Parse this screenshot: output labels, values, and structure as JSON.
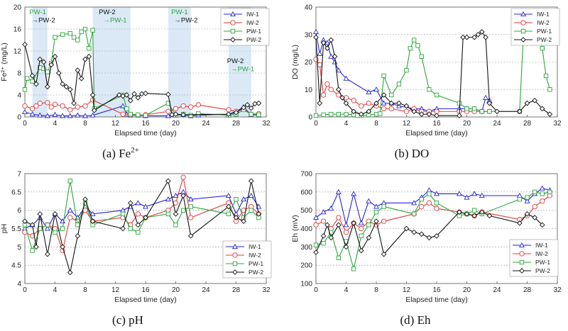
{
  "colors": {
    "IW-1": "#2323d8",
    "IW-2": "#e03a3a",
    "PW-1": "#2aa63a",
    "PW-2": "#111111",
    "shade": "#dbe9f6"
  },
  "chart_data": [
    {
      "type": "line",
      "id": "a",
      "caption": "(a) Fe",
      "caption_sup": "2+",
      "xlabel": "Elapsed time (day)",
      "ylabel": "Fe²⁺ (mg/L)",
      "xlim": [
        0,
        32
      ],
      "ylim": [
        0,
        20
      ],
      "xticks": [
        0,
        4,
        8,
        12,
        16,
        20,
        24,
        28,
        32
      ],
      "yticks": [
        0,
        4,
        8,
        12,
        16,
        20
      ],
      "shaded": [
        [
          1,
          3
        ],
        [
          9,
          14
        ],
        [
          19,
          22
        ],
        [
          27,
          30
        ]
      ],
      "annotations": [
        {
          "text": "PW-1",
          "x": 0.6,
          "y": 18.7,
          "color": "#2aa63a"
        },
        {
          "text": "→PW-2",
          "x": 0.9,
          "y": 17.2,
          "color": "#111111"
        },
        {
          "text": "PW-2",
          "x": 9.8,
          "y": 18.7,
          "color": "#111111"
        },
        {
          "text": "→PW-1",
          "x": 10.4,
          "y": 17.2,
          "color": "#2aa63a"
        },
        {
          "text": "PW-1",
          "x": 19.4,
          "y": 18.7,
          "color": "#2aa63a"
        },
        {
          "text": "→PW-2",
          "x": 19.8,
          "y": 17.2,
          "color": "#111111"
        },
        {
          "text": "PW-2",
          "x": 26.8,
          "y": 9.8,
          "color": "#111111"
        },
        {
          "text": "→PW-1",
          "x": 27.3,
          "y": 8.3,
          "color": "#2aa63a"
        }
      ],
      "legend_position": "top-right",
      "series": [
        {
          "name": "IW-1",
          "marker": "triangle",
          "x": [
            0,
            1,
            2,
            3,
            4,
            5,
            6,
            7,
            8,
            9,
            13,
            13.5,
            14,
            15,
            16,
            19,
            20,
            21,
            22,
            23,
            27,
            28,
            29,
            30,
            31
          ],
          "y": [
            0.9,
            0.5,
            0.3,
            0.2,
            0.4,
            0.2,
            0.2,
            0.3,
            0.2,
            0.3,
            2.0,
            0.5,
            0.3,
            0.3,
            0.2,
            0.2,
            0.3,
            0.4,
            0.2,
            0.3,
            0.5,
            1.0,
            1.8,
            0.4,
            0.3
          ]
        },
        {
          "name": "IW-2",
          "marker": "circle",
          "x": [
            0,
            1,
            1.5,
            2,
            3,
            3.5,
            4,
            5,
            6,
            7,
            8,
            9,
            13,
            14,
            15,
            16,
            19,
            20,
            21,
            22,
            23,
            27,
            28,
            29,
            30,
            31
          ],
          "y": [
            2.0,
            1.5,
            2.0,
            2.5,
            2.6,
            1.8,
            2.3,
            2.0,
            1.3,
            1.8,
            2.0,
            3.1,
            0.5,
            0.4,
            0.3,
            0.4,
            1.0,
            1.5,
            2.0,
            1.8,
            2.2,
            1.3,
            1.0,
            1.4,
            0.5,
            0.6
          ]
        },
        {
          "name": "PW-1",
          "marker": "square",
          "x": [
            0,
            0.3,
            1,
            2,
            2.5,
            3,
            3.5,
            4,
            5,
            6,
            6.5,
            7,
            7.5,
            8,
            8.5,
            9,
            9.2,
            13,
            13.5,
            14,
            15,
            16,
            19,
            20,
            21,
            22,
            23,
            27,
            28,
            29,
            30,
            31
          ],
          "y": [
            5.0,
            7.0,
            6.5,
            9.0,
            8.8,
            8.2,
            9.8,
            14.5,
            15.0,
            15.2,
            14.5,
            14.0,
            15.5,
            16.0,
            12.5,
            15.8,
            1.5,
            4.0,
            1.5,
            0.5,
            0.4,
            0.3,
            2.5,
            0.3,
            0.5,
            0.3,
            0.6,
            0.3,
            0.5,
            1.3,
            0.5,
            0.4
          ]
        },
        {
          "name": "PW-2",
          "marker": "diamond",
          "x": [
            0,
            1,
            1.5,
            2,
            2.5,
            3,
            3.5,
            4,
            4.5,
            5,
            5.5,
            6,
            6.5,
            7,
            7.5,
            8,
            8.5,
            9,
            9.2,
            12.5,
            13,
            13.5,
            14,
            14.5,
            15,
            15.5,
            16,
            19,
            19.5,
            20,
            21,
            27,
            28,
            29,
            29.5,
            30,
            30.5,
            31
          ],
          "y": [
            13.2,
            7.5,
            6.0,
            10.5,
            10.0,
            5.5,
            9.5,
            11.0,
            8.0,
            6.0,
            5.5,
            5.0,
            2.5,
            8.5,
            7.0,
            10.5,
            11.0,
            4.0,
            1.2,
            4.0,
            3.8,
            4.0,
            3.0,
            4.2,
            3.5,
            4.2,
            4.3,
            4.1,
            0.4,
            0.5,
            0.4,
            0.5,
            0.8,
            1.7,
            2.2,
            1.6,
            2.4,
            2.5
          ]
        }
      ]
    },
    {
      "type": "line",
      "id": "b",
      "caption": "(b) DO",
      "xlabel": "Elapsed time (day)",
      "ylabel": "DO (mg/L)",
      "xlim": [
        0,
        32
      ],
      "ylim": [
        0,
        40
      ],
      "xticks": [
        0,
        4,
        8,
        12,
        16,
        20,
        24,
        28,
        32
      ],
      "yticks": [
        0,
        10,
        20,
        30,
        40
      ],
      "legend_position": "top-right",
      "series": [
        {
          "name": "IW-1",
          "marker": "triangle",
          "x": [
            0,
            0.5,
            1,
            1.5,
            2,
            2.5,
            3,
            4,
            7,
            8,
            9,
            10,
            11,
            13,
            14,
            15,
            16,
            19,
            20,
            21,
            22,
            22.5,
            23
          ],
          "y": [
            31,
            23,
            28,
            27,
            22,
            20,
            17,
            14,
            9,
            10,
            5,
            5,
            4,
            3,
            3,
            2,
            3,
            3,
            3,
            3,
            2,
            7,
            6
          ]
        },
        {
          "name": "IW-2",
          "marker": "circle",
          "x": [
            0,
            0.5,
            1,
            1.5,
            2,
            3,
            4,
            5,
            6,
            7,
            8,
            9,
            10,
            12,
            13,
            14,
            15,
            16,
            19,
            20,
            21,
            22,
            23
          ],
          "y": [
            21,
            19,
            8,
            12,
            10,
            8,
            7,
            6,
            4,
            5,
            4,
            3,
            3,
            2,
            3,
            2,
            2,
            2,
            2,
            2,
            2,
            2,
            2
          ]
        },
        {
          "name": "PW-1",
          "marker": "square",
          "x": [
            0,
            1,
            2,
            3,
            4,
            5,
            5.5,
            6,
            7,
            8,
            8.5,
            9,
            10,
            11,
            12,
            12.5,
            13,
            13.5,
            14,
            15,
            16,
            19,
            20,
            21,
            22,
            23,
            27,
            27.5,
            28,
            28.5,
            29,
            29.5,
            30,
            30.5,
            31
          ],
          "y": [
            0.5,
            0.8,
            1,
            1,
            1,
            0.8,
            0.5,
            0.5,
            0.8,
            1,
            1.2,
            15,
            8,
            12,
            17,
            25,
            28,
            26,
            22,
            10,
            8,
            5,
            3,
            3,
            2,
            2,
            2,
            30,
            30,
            30,
            31,
            31,
            25,
            15,
            10
          ]
        },
        {
          "name": "PW-2",
          "marker": "diamond",
          "x": [
            0,
            0.5,
            1,
            1.5,
            2,
            2.5,
            3,
            3.5,
            4,
            5,
            6,
            7,
            8,
            9,
            10,
            11,
            12,
            13,
            14,
            15,
            16,
            19,
            19.5,
            20,
            21,
            21.5,
            22,
            22.5,
            23,
            24,
            27,
            28,
            29,
            30,
            31
          ],
          "y": [
            29,
            5,
            27,
            25,
            28,
            22,
            10,
            7,
            5,
            2,
            1,
            2,
            5,
            8,
            5,
            5,
            4,
            2,
            1,
            1,
            0.5,
            0.5,
            29,
            29,
            29,
            30,
            31,
            29,
            5,
            2,
            2,
            5,
            6,
            3,
            1
          ]
        }
      ]
    },
    {
      "type": "line",
      "id": "c",
      "caption": "(c) pH",
      "xlabel": "Elapsed time (day)",
      "ylabel": "pH",
      "xlim": [
        0,
        32
      ],
      "ylim": [
        4,
        7
      ],
      "xticks": [
        0,
        4,
        8,
        12,
        16,
        20,
        24,
        28,
        32
      ],
      "yticks": [
        4,
        4.5,
        5,
        5.5,
        6,
        6.5,
        7
      ],
      "legend_position": "bottom-right",
      "series": [
        {
          "name": "IW-1",
          "marker": "triangle",
          "x": [
            0,
            1,
            2,
            3,
            4,
            5,
            6,
            7,
            8,
            9,
            13,
            14,
            15,
            16,
            19,
            20,
            21,
            22,
            27,
            28,
            29,
            30,
            31
          ],
          "y": [
            5.5,
            5.6,
            5.8,
            5.5,
            5.9,
            5.7,
            6.0,
            5.8,
            6.1,
            5.9,
            6.0,
            6.1,
            6.2,
            6.1,
            6.3,
            6.4,
            6.5,
            6.3,
            6.4,
            5.9,
            6.3,
            6.4,
            6.1
          ]
        },
        {
          "name": "IW-2",
          "marker": "circle",
          "x": [
            0,
            1,
            2,
            3,
            4,
            5,
            6,
            7,
            8,
            9,
            13,
            14,
            15,
            16,
            19,
            20,
            21,
            22,
            27,
            28,
            29,
            30,
            31
          ],
          "y": [
            5.4,
            5.3,
            5.5,
            5.6,
            5.5,
            4.9,
            5.8,
            5.7,
            6.0,
            5.7,
            5.8,
            5.6,
            5.9,
            5.8,
            6.0,
            6.2,
            6.9,
            5.8,
            6.2,
            5.7,
            6.0,
            6.1,
            5.9
          ]
        },
        {
          "name": "PW-1",
          "marker": "square",
          "x": [
            0,
            1,
            2,
            3,
            4,
            5,
            6,
            7,
            8,
            9,
            13,
            14,
            15,
            16,
            19,
            20,
            21,
            22,
            27,
            28,
            29,
            30,
            31
          ],
          "y": [
            5.6,
            4.9,
            5.5,
            5.6,
            5.4,
            5.5,
            6.8,
            5.6,
            6.2,
            5.6,
            5.9,
            5.5,
            5.4,
            5.8,
            5.9,
            5.6,
            6.0,
            6.1,
            5.9,
            6.3,
            5.8,
            6.0,
            5.8
          ]
        },
        {
          "name": "PW-2",
          "marker": "diamond",
          "x": [
            0,
            1,
            1.5,
            2,
            3,
            4,
            5,
            6,
            7,
            8,
            9,
            13,
            14,
            15,
            16,
            19,
            20,
            21,
            22,
            27,
            28,
            29,
            30,
            31
          ],
          "y": [
            5.7,
            5.6,
            5.0,
            5.9,
            4.8,
            5.9,
            5.0,
            4.3,
            5.3,
            6.3,
            5.7,
            5.5,
            6.2,
            5.6,
            5.8,
            6.8,
            5.9,
            6.4,
            5.3,
            6.1,
            5.8,
            5.7,
            6.8,
            5.9
          ]
        }
      ]
    },
    {
      "type": "line",
      "id": "d",
      "caption": "(d) Eh",
      "xlabel": "Elapsed time (day)",
      "ylabel": "Eh (mV)",
      "xlim": [
        0,
        32
      ],
      "ylim": [
        100,
        700
      ],
      "xticks": [
        0,
        4,
        8,
        12,
        16,
        20,
        24,
        28,
        32
      ],
      "yticks": [
        100,
        200,
        300,
        400,
        500,
        600,
        700
      ],
      "legend_position": "bottom-right",
      "series": [
        {
          "name": "IW-1",
          "marker": "triangle",
          "x": [
            0,
            1,
            2,
            3,
            4,
            5,
            6,
            7,
            8,
            9,
            13,
            14,
            15,
            16,
            19,
            20,
            21,
            22,
            27,
            28,
            29,
            30,
            31
          ],
          "y": [
            460,
            490,
            510,
            600,
            420,
            590,
            430,
            550,
            520,
            540,
            540,
            570,
            610,
            590,
            590,
            570,
            590,
            580,
            580,
            550,
            590,
            620,
            610
          ]
        },
        {
          "name": "IW-2",
          "marker": "circle",
          "x": [
            0,
            1,
            2,
            3,
            4,
            5,
            6,
            7,
            8,
            9,
            13,
            14,
            15,
            16,
            19,
            20,
            21,
            22,
            27,
            28,
            29,
            30,
            31
          ],
          "y": [
            420,
            440,
            400,
            460,
            380,
            430,
            400,
            440,
            420,
            440,
            480,
            520,
            540,
            510,
            490,
            480,
            470,
            490,
            450,
            470,
            520,
            550,
            580
          ]
        },
        {
          "name": "PW-1",
          "marker": "square",
          "x": [
            0,
            1,
            2,
            3,
            4,
            5,
            6,
            7,
            8,
            9,
            13,
            14,
            15,
            16,
            19,
            20,
            21,
            22,
            27,
            28,
            29,
            30,
            31
          ],
          "y": [
            310,
            320,
            380,
            240,
            330,
            180,
            360,
            420,
            490,
            520,
            480,
            560,
            590,
            540,
            470,
            480,
            500,
            480,
            560,
            570,
            600,
            590,
            600
          ]
        },
        {
          "name": "PW-2",
          "marker": "diamond",
          "x": [
            0,
            1,
            1.5,
            2,
            3,
            4,
            5,
            6,
            7,
            8,
            9,
            12,
            13,
            14,
            15,
            16,
            19,
            20,
            21,
            22,
            23,
            27,
            28,
            29,
            30
          ],
          "y": [
            270,
            360,
            420,
            350,
            420,
            300,
            430,
            280,
            350,
            440,
            260,
            400,
            380,
            370,
            350,
            360,
            490,
            480,
            470,
            490,
            470,
            430,
            480,
            460,
            420
          ]
        }
      ]
    }
  ]
}
